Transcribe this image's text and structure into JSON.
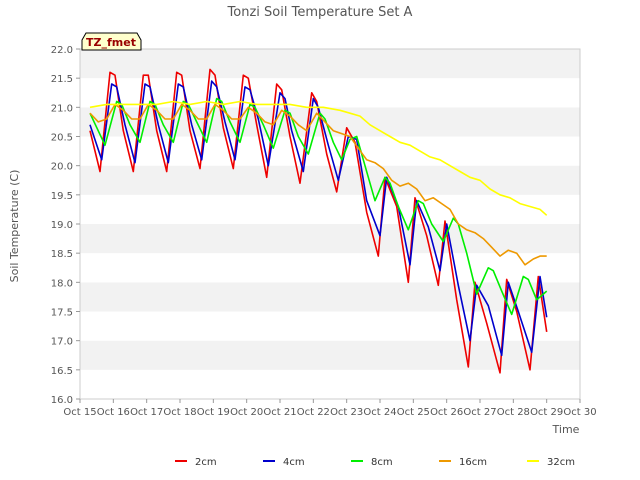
{
  "chart_data": {
    "type": "line",
    "title": "Tonzi Soil Temperature Set A",
    "xlabel": "Time",
    "ylabel": "Soil Temperature (C)",
    "ylim": [
      16.0,
      22.0
    ],
    "xlim": [
      15,
      30
    ],
    "yticks": [
      16.0,
      16.5,
      17.0,
      17.5,
      18.0,
      18.5,
      19.0,
      19.5,
      20.0,
      20.5,
      21.0,
      21.5,
      22.0
    ],
    "xticks": [
      {
        "value": 15,
        "label": "Oct 15"
      },
      {
        "value": 16,
        "label": "Oct 16"
      },
      {
        "value": 17,
        "label": "Oct 17"
      },
      {
        "value": 18,
        "label": "Oct 18"
      },
      {
        "value": 19,
        "label": "Oct 19"
      },
      {
        "value": 20,
        "label": "Oct 20"
      },
      {
        "value": 21,
        "label": "Oct 21"
      },
      {
        "value": 22,
        "label": "Oct 22"
      },
      {
        "value": 23,
        "label": "Oct 23"
      },
      {
        "value": 24,
        "label": "Oct 24"
      },
      {
        "value": 25,
        "label": "Oct 25"
      },
      {
        "value": 26,
        "label": "Oct 26"
      },
      {
        "value": 27,
        "label": "Oct 27"
      },
      {
        "value": 28,
        "label": "Oct 28"
      },
      {
        "value": 29,
        "label": "Oct 29"
      },
      {
        "value": 30,
        "label": "Oct 30"
      }
    ],
    "annotation": "TZ_fmet",
    "legend_position": "bottom-center",
    "grid": "horizontal-bands",
    "series": [
      {
        "name": "2cm",
        "color": "#ee0000",
        "x": [
          15.3,
          15.6,
          15.9,
          16.05,
          16.3,
          16.6,
          16.9,
          17.05,
          17.3,
          17.6,
          17.9,
          18.05,
          18.3,
          18.6,
          18.9,
          19.05,
          19.3,
          19.6,
          19.9,
          20.05,
          20.3,
          20.6,
          20.9,
          21.05,
          21.3,
          21.6,
          21.95,
          22.1,
          22.4,
          22.7,
          23.0,
          23.25,
          23.6,
          23.95,
          24.15,
          24.5,
          24.85,
          25.05,
          25.4,
          25.75,
          25.95,
          26.3,
          26.65,
          26.85,
          27.2,
          27.6,
          27.8,
          28.1,
          28.5,
          28.75,
          29.0
        ],
        "y": [
          20.6,
          19.9,
          21.6,
          21.55,
          20.6,
          19.9,
          21.55,
          21.55,
          20.6,
          19.9,
          21.6,
          21.55,
          20.6,
          19.95,
          21.65,
          21.55,
          20.65,
          19.95,
          21.55,
          21.5,
          20.7,
          19.8,
          21.4,
          21.3,
          20.5,
          19.7,
          21.25,
          21.1,
          20.2,
          19.55,
          20.65,
          20.4,
          19.2,
          18.45,
          19.8,
          19.3,
          18.0,
          19.45,
          18.8,
          17.95,
          19.05,
          17.7,
          16.55,
          18.0,
          17.3,
          16.45,
          18.05,
          17.5,
          16.5,
          18.1,
          17.15
        ]
      },
      {
        "name": "4cm",
        "color": "#0000cc",
        "x": [
          15.3,
          15.65,
          15.95,
          16.1,
          16.35,
          16.65,
          16.95,
          17.1,
          17.35,
          17.65,
          17.95,
          18.1,
          18.35,
          18.65,
          18.95,
          19.1,
          19.35,
          19.65,
          19.95,
          20.1,
          20.35,
          20.65,
          21.0,
          21.15,
          21.35,
          21.7,
          22.0,
          22.15,
          22.45,
          22.75,
          23.05,
          23.3,
          23.6,
          24.0,
          24.2,
          24.55,
          24.9,
          25.1,
          25.45,
          25.8,
          26.0,
          26.35,
          26.7,
          26.9,
          27.25,
          27.65,
          27.85,
          28.15,
          28.55,
          28.8,
          29.0
        ],
        "y": [
          20.7,
          20.1,
          21.4,
          21.35,
          20.7,
          20.05,
          21.4,
          21.35,
          20.7,
          20.05,
          21.4,
          21.35,
          20.7,
          20.1,
          21.45,
          21.35,
          20.75,
          20.1,
          21.35,
          21.3,
          20.8,
          20.0,
          21.25,
          21.15,
          20.6,
          19.9,
          21.15,
          21.0,
          20.35,
          19.75,
          20.5,
          20.45,
          19.4,
          18.8,
          19.8,
          19.3,
          18.3,
          19.4,
          18.95,
          18.2,
          19.0,
          17.95,
          17.0,
          17.95,
          17.6,
          16.75,
          18.0,
          17.5,
          16.8,
          18.1,
          17.4
        ]
      },
      {
        "name": "8cm",
        "color": "#00ee00",
        "x": [
          15.3,
          15.75,
          16.1,
          16.25,
          16.5,
          16.8,
          17.1,
          17.25,
          17.5,
          17.8,
          18.1,
          18.25,
          18.5,
          18.8,
          19.1,
          19.25,
          19.5,
          19.8,
          20.1,
          20.25,
          20.5,
          20.8,
          21.15,
          21.3,
          21.55,
          21.85,
          22.2,
          22.35,
          22.6,
          22.85,
          23.1,
          23.3,
          23.55,
          23.85,
          24.15,
          24.3,
          24.55,
          24.85,
          25.15,
          25.3,
          25.55,
          25.9,
          26.2,
          26.35,
          26.6,
          26.9,
          27.25,
          27.4,
          27.65,
          27.95,
          28.3,
          28.45,
          28.7,
          29.0
        ],
        "y": [
          20.9,
          20.35,
          21.1,
          21.05,
          20.7,
          20.4,
          21.1,
          21.05,
          20.7,
          20.4,
          21.1,
          21.05,
          20.75,
          20.4,
          21.15,
          21.1,
          20.75,
          20.4,
          21.05,
          21.0,
          20.7,
          20.3,
          20.95,
          20.9,
          20.5,
          20.2,
          20.9,
          20.8,
          20.4,
          20.1,
          20.45,
          20.5,
          20.0,
          19.4,
          19.8,
          19.7,
          19.3,
          18.9,
          19.4,
          19.35,
          19.0,
          18.7,
          19.1,
          19.0,
          18.5,
          17.8,
          18.25,
          18.2,
          17.85,
          17.45,
          18.1,
          18.05,
          17.7,
          17.85
        ]
      },
      {
        "name": "16cm",
        "color": "#ee9900",
        "x": [
          15.3,
          15.55,
          15.8,
          16.05,
          16.3,
          16.55,
          16.8,
          17.05,
          17.3,
          17.55,
          17.8,
          18.05,
          18.3,
          18.55,
          18.8,
          19.05,
          19.3,
          19.55,
          19.8,
          20.05,
          20.3,
          20.55,
          20.8,
          21.05,
          21.3,
          21.55,
          21.8,
          22.1,
          22.35,
          22.6,
          22.85,
          23.1,
          23.35,
          23.6,
          23.85,
          24.1,
          24.35,
          24.6,
          24.85,
          25.1,
          25.35,
          25.6,
          25.85,
          26.1,
          26.35,
          26.6,
          26.85,
          27.1,
          27.35,
          27.6,
          27.85,
          28.1,
          28.35,
          28.6,
          28.8,
          29.0
        ],
        "y": [
          20.9,
          20.75,
          20.8,
          21.05,
          20.95,
          20.8,
          20.8,
          21.05,
          20.95,
          20.8,
          20.8,
          21.05,
          20.95,
          20.8,
          20.8,
          21.05,
          20.95,
          20.8,
          20.8,
          21.0,
          20.9,
          20.75,
          20.7,
          20.95,
          20.85,
          20.7,
          20.6,
          20.9,
          20.75,
          20.6,
          20.55,
          20.5,
          20.3,
          20.1,
          20.05,
          19.95,
          19.75,
          19.65,
          19.7,
          19.6,
          19.4,
          19.45,
          19.35,
          19.25,
          19.0,
          18.9,
          18.85,
          18.75,
          18.6,
          18.45,
          18.55,
          18.5,
          18.3,
          18.4,
          18.45,
          18.45
        ]
      },
      {
        "name": "32cm",
        "color": "#ffff00",
        "x": [
          15.3,
          15.8,
          16.3,
          16.8,
          17.3,
          17.8,
          18.3,
          18.8,
          19.3,
          19.8,
          20.3,
          20.8,
          21.3,
          21.8,
          22.3,
          22.8,
          23.1,
          23.4,
          23.7,
          24.0,
          24.3,
          24.6,
          24.9,
          25.2,
          25.5,
          25.8,
          26.1,
          26.4,
          26.7,
          27.0,
          27.3,
          27.6,
          27.9,
          28.2,
          28.5,
          28.8,
          29.0
        ],
        "y": [
          21.0,
          21.05,
          21.05,
          21.05,
          21.05,
          21.1,
          21.05,
          21.1,
          21.05,
          21.1,
          21.05,
          21.05,
          21.05,
          21.0,
          21.0,
          20.95,
          20.9,
          20.85,
          20.7,
          20.6,
          20.5,
          20.4,
          20.35,
          20.25,
          20.15,
          20.1,
          20.0,
          19.9,
          19.8,
          19.75,
          19.6,
          19.5,
          19.45,
          19.35,
          19.3,
          19.25,
          19.15
        ]
      }
    ]
  }
}
